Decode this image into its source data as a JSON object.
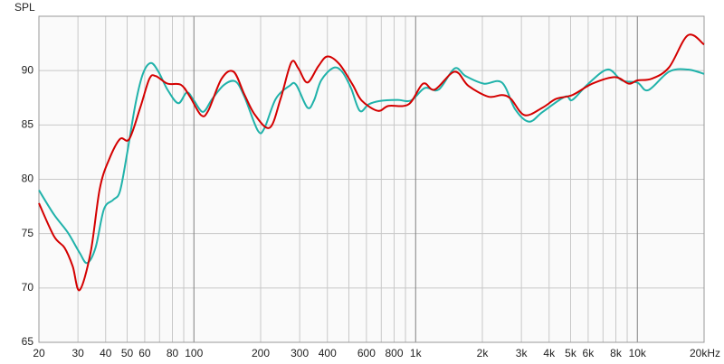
{
  "chart_data": {
    "type": "line",
    "ylabel": "SPL",
    "xscale": "log",
    "xlim": [
      20,
      20000
    ],
    "ylim": [
      65,
      95
    ],
    "yticks": [
      65,
      70,
      75,
      80,
      85,
      90
    ],
    "xticks": [
      20,
      30,
      40,
      50,
      60,
      80,
      100,
      200,
      300,
      400,
      600,
      800,
      {
        "value": 1000,
        "label": "1k"
      },
      {
        "value": 2000,
        "label": "2k"
      },
      {
        "value": 3000,
        "label": "3k"
      },
      {
        "value": 4000,
        "label": "4k"
      },
      {
        "value": 5000,
        "label": "5k"
      },
      {
        "value": 6000,
        "label": "6k"
      },
      {
        "value": 8000,
        "label": "8k"
      },
      {
        "value": 10000,
        "label": "10k"
      },
      {
        "value": 20000,
        "label": "20kHz"
      }
    ],
    "xminorticks": [
      70,
      90,
      500,
      700,
      900,
      7000,
      9000
    ],
    "grid": true,
    "series": [
      {
        "color": "#20b2aa",
        "x": [
          20,
          23.4,
          27,
          30.5,
          33,
          36,
          39.3,
          43.2,
          46.4,
          50,
          54.6,
          59,
          64,
          69.2,
          76,
          85,
          93,
          100,
          110,
          121,
          137,
          154,
          169,
          194,
          208,
          234,
          270,
          289,
          325,
          348,
          375,
          425,
          466,
          511,
          560,
          614,
          687,
          828,
          953,
          1100,
          1270,
          1500,
          1680,
          2030,
          2450,
          2820,
          3250,
          3740,
          4720,
          5090,
          5980,
          7340,
          8510,
          10000,
          11200,
          13900,
          16900,
          20000
        ],
        "values": [
          79.0,
          76.75,
          75.1,
          73.25,
          72.3,
          73.7,
          77.25,
          78.1,
          78.9,
          82.4,
          87.0,
          89.75,
          90.7,
          89.9,
          88.25,
          87.0,
          88.0,
          87.25,
          86.2,
          87.4,
          88.7,
          89.0,
          87.6,
          84.5,
          84.7,
          87.4,
          88.6,
          88.7,
          86.6,
          87.25,
          89.1,
          90.25,
          89.9,
          88.4,
          86.3,
          86.9,
          87.2,
          87.3,
          87.25,
          88.4,
          88.25,
          90.2,
          89.5,
          88.8,
          88.9,
          86.4,
          85.3,
          86.2,
          87.6,
          87.3,
          88.75,
          90.1,
          89.1,
          88.9,
          88.2,
          89.9,
          90.1,
          89.7
        ]
      },
      {
        "color": "#d40000",
        "x": [
          20,
          23.4,
          26.1,
          28.4,
          30.5,
          34.2,
          37.6,
          41.3,
          46.4,
          51.1,
          57.3,
          63,
          67.3,
          76,
          87.3,
          96,
          107.7,
          116,
          133.3,
          151,
          169,
          189,
          220,
          246,
          275,
          296,
          325,
          364,
          400,
          453,
          520,
          571,
          675,
          755,
          930,
          1080,
          1220,
          1500,
          1730,
          2130,
          2450,
          2690,
          3100,
          3740,
          4300,
          5090,
          6270,
          7920,
          9150,
          10000,
          11600,
          13900,
          16900,
          20000
        ],
        "values": [
          77.8,
          74.75,
          73.7,
          72.0,
          69.8,
          73.25,
          79.1,
          81.75,
          83.7,
          83.7,
          86.6,
          89.25,
          89.5,
          88.8,
          88.7,
          87.6,
          85.9,
          86.3,
          89.25,
          89.9,
          87.8,
          85.9,
          84.75,
          87.4,
          90.75,
          90.2,
          88.9,
          90.4,
          91.3,
          90.6,
          88.7,
          87.25,
          86.3,
          86.75,
          86.9,
          88.8,
          88.25,
          89.9,
          88.6,
          87.6,
          87.75,
          87.4,
          85.9,
          86.6,
          87.4,
          87.75,
          88.8,
          89.4,
          88.8,
          89.1,
          89.25,
          90.3,
          93.25,
          92.4
        ]
      }
    ]
  }
}
